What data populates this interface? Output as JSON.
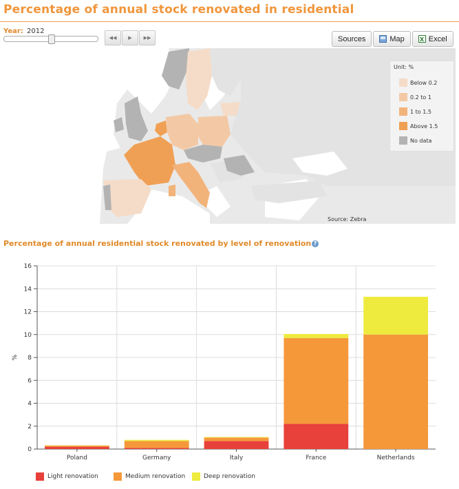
{
  "page": {
    "title": "Percentage of annual stock renovated in residential"
  },
  "controls": {
    "year_label": "Year:",
    "year_value": "2012",
    "slider_fraction": 0.5,
    "buttons": {
      "sources": "Sources",
      "map": "Map",
      "excel": "Excel"
    },
    "play_icons": [
      "rewind-icon",
      "play-icon",
      "fast-forward-icon"
    ]
  },
  "map": {
    "unit": "Unit: %",
    "source": "Source: Zebra",
    "legend": [
      {
        "label": "Below 0.2",
        "color": "#f5dcc8"
      },
      {
        "label": "0.2 to 1",
        "color": "#f3c9a5"
      },
      {
        "label": "1 to 1.5",
        "color": "#f2b37b"
      },
      {
        "label": "Above 1.5",
        "color": "#f0a055"
      },
      {
        "label": "No data",
        "color": "#b3b3b3"
      }
    ]
  },
  "chart_section": {
    "title": "Percentage of annual residential stock renovated by level of renovation"
  },
  "chart_data": {
    "type": "bar",
    "stacked": true,
    "categories": [
      "Poland",
      "Germany",
      "Italy",
      "France",
      "Netherlands"
    ],
    "series": [
      {
        "name": "Light renovation",
        "color": "#e8403a",
        "values": [
          0.2,
          0.1,
          0.7,
          2.2,
          0
        ]
      },
      {
        "name": "Medium renovation",
        "color": "#f5983a",
        "values": [
          0.1,
          0.6,
          0.3,
          7.5,
          10
        ]
      },
      {
        "name": "Deep renovation",
        "color": "#eeeb3e",
        "values": [
          0.02,
          0.1,
          0.05,
          0.35,
          3.3
        ]
      }
    ],
    "ylabel": "%",
    "ylim": [
      0,
      16
    ],
    "yticks": [
      0,
      2,
      4,
      6,
      8,
      10,
      12,
      14,
      16
    ],
    "grid": true,
    "legend_position": "bottom-left"
  }
}
